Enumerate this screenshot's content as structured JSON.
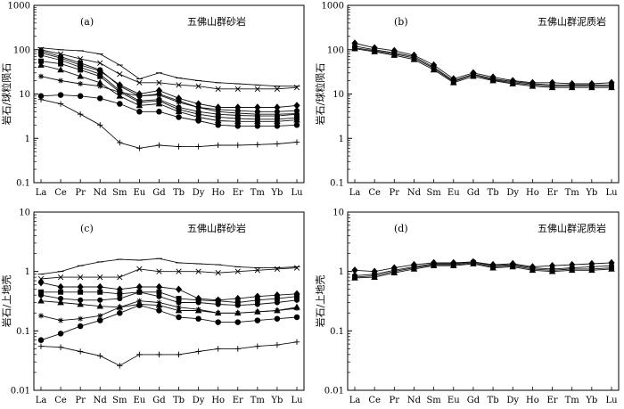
{
  "chart_data": [
    {
      "type": "line",
      "panel_label": "(a)",
      "title": "五佛山群砂岩",
      "ylabel": "岩石/球粒陨石",
      "yscale": "log",
      "ylim": [
        0.1,
        1000
      ],
      "yticks": [
        "0.1",
        "1",
        "10",
        "100",
        "1000"
      ],
      "categories": [
        "La",
        "Ce",
        "Pr",
        "Nd",
        "Sm",
        "Eu",
        "Gd",
        "Tb",
        "Dy",
        "Ho",
        "Er",
        "Tm",
        "Yb",
        "Lu"
      ],
      "series": [
        {
          "name": "s1",
          "marker": "dash",
          "values": [
            110,
            100,
            95,
            80,
            45,
            22,
            30,
            23,
            20,
            18,
            17,
            16,
            15,
            15
          ]
        },
        {
          "name": "s2",
          "marker": "cross",
          "values": [
            100,
            80,
            62,
            50,
            28,
            18,
            18,
            16,
            15,
            13,
            13,
            13,
            13,
            14
          ]
        },
        {
          "name": "s3",
          "marker": "circle",
          "values": [
            95,
            70,
            50,
            35,
            15,
            9,
            10,
            7,
            5,
            4.5,
            4.2,
            4,
            4,
            4.2
          ]
        },
        {
          "name": "s4",
          "marker": "diamond",
          "values": [
            85,
            65,
            45,
            33,
            16,
            10,
            12,
            8,
            6,
            5,
            5,
            5,
            5,
            5.5
          ]
        },
        {
          "name": "s5",
          "marker": "circle",
          "values": [
            75,
            58,
            40,
            28,
            12,
            7,
            7.5,
            5,
            4,
            3.5,
            3.3,
            3.2,
            3.2,
            3.5
          ]
        },
        {
          "name": "s6",
          "marker": "square",
          "values": [
            55,
            48,
            35,
            25,
            11,
            6.5,
            7,
            4.5,
            3.5,
            3,
            2.8,
            2.7,
            2.7,
            2.9
          ]
        },
        {
          "name": "s7",
          "marker": "triangle",
          "values": [
            45,
            35,
            25,
            18,
            9,
            5.5,
            6,
            4,
            3,
            2.5,
            2.4,
            2.4,
            2.4,
            2.6
          ]
        },
        {
          "name": "s8",
          "marker": "star",
          "values": [
            25,
            20,
            17,
            15,
            11,
            9,
            9.5,
            6.5,
            5,
            4,
            3.7,
            3.5,
            3.5,
            3.6
          ]
        },
        {
          "name": "s9",
          "marker": "dot",
          "values": [
            9,
            9.5,
            9,
            8,
            6,
            4,
            4,
            3,
            2.5,
            2,
            1.9,
            1.9,
            1.9,
            2
          ]
        },
        {
          "name": "s10",
          "marker": "plus",
          "values": [
            7.5,
            6,
            3.5,
            2,
            0.8,
            0.6,
            0.7,
            0.65,
            0.65,
            0.7,
            0.7,
            0.72,
            0.75,
            0.82
          ]
        }
      ]
    },
    {
      "type": "line",
      "panel_label": "(b)",
      "title": "五佛山群泥质岩",
      "ylabel": "岩石/球粒陨石",
      "yscale": "log",
      "ylim": [
        0.1,
        1000
      ],
      "yticks": [
        "0.1",
        "1",
        "10",
        "100",
        "1000"
      ],
      "categories": [
        "La",
        "Ce",
        "Pr",
        "Nd",
        "Sm",
        "Eu",
        "Gd",
        "Tb",
        "Dy",
        "Ho",
        "Er",
        "Tm",
        "Yb",
        "Lu"
      ],
      "series": [
        {
          "name": "s1",
          "marker": "diamond",
          "values": [
            140,
            110,
            95,
            75,
            45,
            22,
            30,
            24,
            20,
            18,
            18,
            17,
            17,
            18
          ]
        },
        {
          "name": "s2",
          "marker": "circle",
          "values": [
            120,
            100,
            85,
            70,
            40,
            20,
            28,
            22,
            19,
            17,
            16,
            16,
            16,
            16
          ]
        },
        {
          "name": "s3",
          "marker": "square",
          "values": [
            110,
            95,
            80,
            65,
            38,
            19,
            27,
            21,
            18,
            16,
            15,
            15,
            15,
            15
          ]
        },
        {
          "name": "s4",
          "marker": "triangle",
          "values": [
            105,
            90,
            75,
            60,
            35,
            18,
            25,
            20,
            17,
            15,
            14,
            14,
            14,
            14
          ]
        }
      ]
    },
    {
      "type": "line",
      "panel_label": "(c)",
      "title": "五佛山群砂岩",
      "ylabel": "岩石/上地壳",
      "yscale": "log",
      "ylim": [
        0.01,
        10
      ],
      "yticks": [
        "0.01",
        "0.1",
        "1",
        "10"
      ],
      "categories": [
        "La",
        "Ce",
        "Pr",
        "Nd",
        "Sm",
        "Eu",
        "Gd",
        "Tb",
        "Dy",
        "Ho",
        "Er",
        "Tm",
        "Yb",
        "Lu"
      ],
      "series": [
        {
          "name": "s1",
          "marker": "dash",
          "values": [
            0.9,
            1.0,
            1.25,
            1.45,
            1.6,
            1.55,
            1.65,
            1.4,
            1.35,
            1.3,
            1.2,
            1.15,
            1.15,
            1.2
          ]
        },
        {
          "name": "s2",
          "marker": "cross",
          "values": [
            0.75,
            0.8,
            0.8,
            0.8,
            0.8,
            1.1,
            1.0,
            1.0,
            1.0,
            0.95,
            1.0,
            1.05,
            1.1,
            1.15
          ]
        },
        {
          "name": "s3",
          "marker": "diamond",
          "values": [
            0.65,
            0.55,
            0.55,
            0.55,
            0.5,
            0.55,
            0.55,
            0.5,
            0.35,
            0.33,
            0.35,
            0.38,
            0.4,
            0.42
          ]
        },
        {
          "name": "s4",
          "marker": "square",
          "values": [
            0.45,
            0.45,
            0.45,
            0.45,
            0.42,
            0.45,
            0.45,
            0.35,
            0.33,
            0.32,
            0.3,
            0.33,
            0.35,
            0.38
          ]
        },
        {
          "name": "s5",
          "marker": "circle",
          "values": [
            0.4,
            0.35,
            0.33,
            0.33,
            0.35,
            0.45,
            0.38,
            0.3,
            0.3,
            0.28,
            0.27,
            0.28,
            0.3,
            0.33
          ]
        },
        {
          "name": "s6",
          "marker": "triangle",
          "values": [
            0.32,
            0.3,
            0.28,
            0.26,
            0.25,
            0.28,
            0.27,
            0.22,
            0.22,
            0.2,
            0.2,
            0.21,
            0.22,
            0.25
          ]
        },
        {
          "name": "s7",
          "marker": "star",
          "values": [
            0.18,
            0.15,
            0.16,
            0.18,
            0.25,
            0.32,
            0.3,
            0.25,
            0.23,
            0.2,
            0.2,
            0.21,
            0.22,
            0.24
          ]
        },
        {
          "name": "s8",
          "marker": "dot",
          "values": [
            0.07,
            0.09,
            0.12,
            0.15,
            0.2,
            0.27,
            0.22,
            0.17,
            0.16,
            0.14,
            0.14,
            0.15,
            0.16,
            0.17
          ]
        },
        {
          "name": "s9",
          "marker": "plus",
          "values": [
            0.055,
            0.053,
            0.045,
            0.038,
            0.026,
            0.04,
            0.04,
            0.04,
            0.045,
            0.05,
            0.05,
            0.055,
            0.058,
            0.065
          ]
        }
      ]
    },
    {
      "type": "line",
      "panel_label": "(d)",
      "title": "五佛山群泥质岩",
      "ylabel": "岩石/上地壳",
      "yscale": "log",
      "ylim": [
        0.01,
        10
      ],
      "yticks": [
        "0.01",
        "0.1",
        "1",
        "10"
      ],
      "categories": [
        "La",
        "Ce",
        "Pr",
        "Nd",
        "Sm",
        "Eu",
        "Gd",
        "Tb",
        "Dy",
        "Ho",
        "Er",
        "Tm",
        "Yb",
        "Lu"
      ],
      "series": [
        {
          "name": "s1",
          "marker": "diamond",
          "values": [
            1.05,
            1.0,
            1.15,
            1.3,
            1.4,
            1.4,
            1.45,
            1.3,
            1.35,
            1.2,
            1.25,
            1.3,
            1.35,
            1.4
          ]
        },
        {
          "name": "s2",
          "marker": "circle",
          "values": [
            0.85,
            0.9,
            1.05,
            1.2,
            1.35,
            1.35,
            1.45,
            1.25,
            1.3,
            1.15,
            1.1,
            1.15,
            1.2,
            1.25
          ]
        },
        {
          "name": "s3",
          "marker": "square",
          "values": [
            0.8,
            0.85,
            1.0,
            1.15,
            1.3,
            1.3,
            1.4,
            1.2,
            1.25,
            1.1,
            1.05,
            1.1,
            1.1,
            1.15
          ]
        },
        {
          "name": "s4",
          "marker": "triangle",
          "values": [
            0.78,
            0.8,
            0.95,
            1.1,
            1.25,
            1.25,
            1.35,
            1.15,
            1.2,
            1.05,
            1.0,
            1.05,
            1.05,
            1.1
          ]
        }
      ]
    }
  ]
}
